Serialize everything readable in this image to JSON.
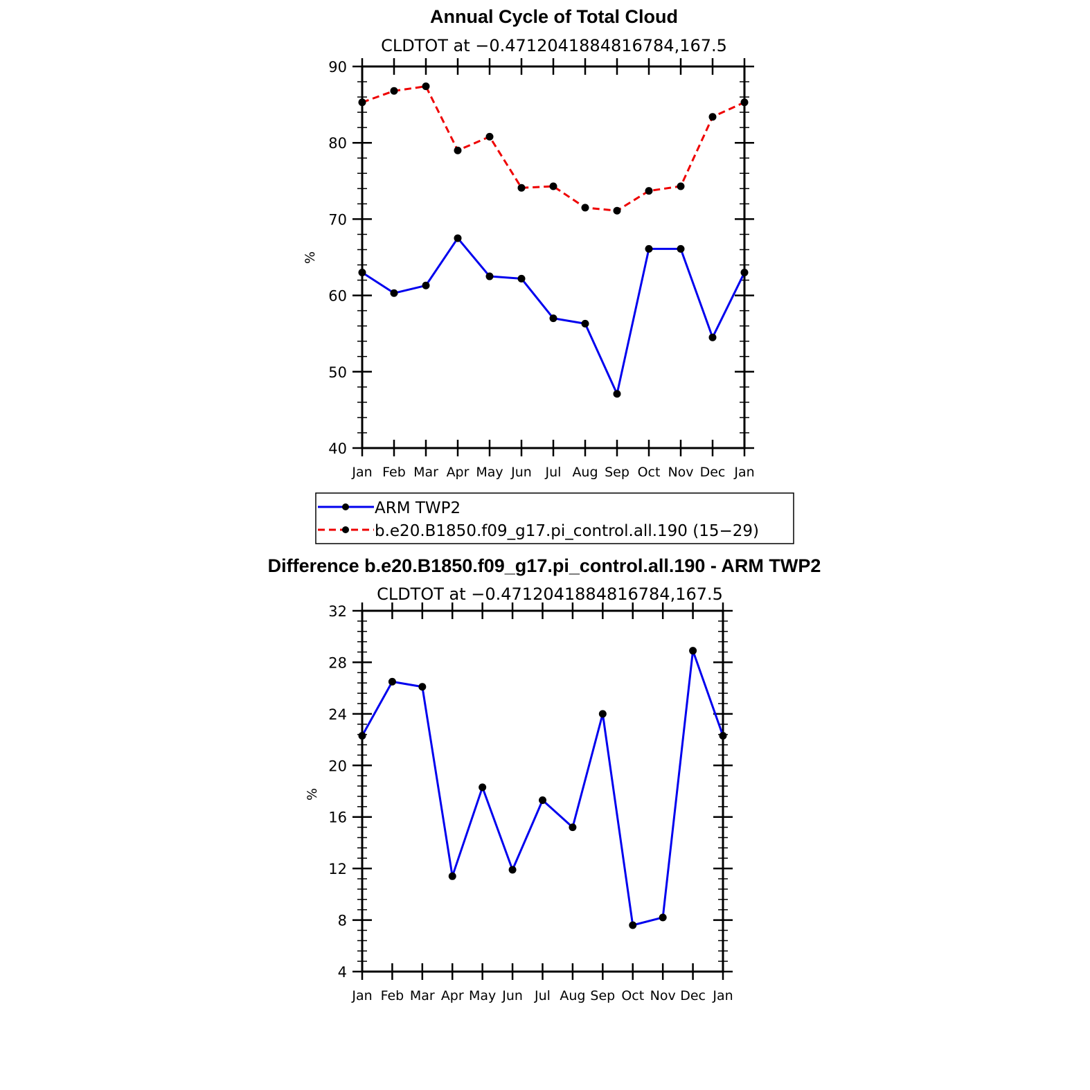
{
  "chart_data": [
    {
      "type": "line",
      "title": "Annual Cycle of Total Cloud",
      "subtitle": "CLDTOT at −0.4712041884816784,167.5",
      "xlabel": "",
      "ylabel": "%",
      "ylim": [
        40,
        90
      ],
      "yticks": [
        "40",
        "50",
        "60",
        "70",
        "80",
        "90"
      ],
      "categories": [
        "Jan",
        "Feb",
        "Mar",
        "Apr",
        "May",
        "Jun",
        "Jul",
        "Aug",
        "Sep",
        "Oct",
        "Nov",
        "Dec",
        "Jan"
      ],
      "legend_position": "bottom",
      "series": [
        {
          "name": "ARM TWP2",
          "color": "#0000ee",
          "style": "solid",
          "values": [
            63.0,
            60.3,
            61.3,
            67.5,
            62.5,
            62.2,
            57.0,
            56.3,
            47.1,
            66.1,
            66.1,
            54.5,
            63.0
          ]
        },
        {
          "name": "b.e20.B1850.f09_g17.pi_control.all.190 (15−29)",
          "color": "#ee0000",
          "style": "dashed",
          "values": [
            85.3,
            86.8,
            87.4,
            79.0,
            80.8,
            74.1,
            74.3,
            71.5,
            71.1,
            73.7,
            74.3,
            83.4,
            85.3
          ]
        }
      ]
    },
    {
      "type": "line",
      "title": "Difference b.e20.B1850.f09_g17.pi_control.all.190 - ARM TWP2",
      "subtitle": "CLDTOT at −0.4712041884816784,167.5",
      "xlabel": "",
      "ylabel": "%",
      "ylim": [
        4,
        32
      ],
      "yticks": [
        "4",
        "8",
        "12",
        "16",
        "20",
        "24",
        "28",
        "32"
      ],
      "categories": [
        "Jan",
        "Feb",
        "Mar",
        "Apr",
        "May",
        "Jun",
        "Jul",
        "Aug",
        "Sep",
        "Oct",
        "Nov",
        "Dec",
        "Jan"
      ],
      "series": [
        {
          "name": "Difference",
          "color": "#0000ee",
          "style": "solid",
          "values": [
            22.3,
            26.5,
            26.1,
            11.4,
            18.3,
            11.9,
            17.3,
            15.2,
            24.0,
            7.6,
            8.2,
            28.9,
            22.3
          ]
        }
      ]
    }
  ]
}
